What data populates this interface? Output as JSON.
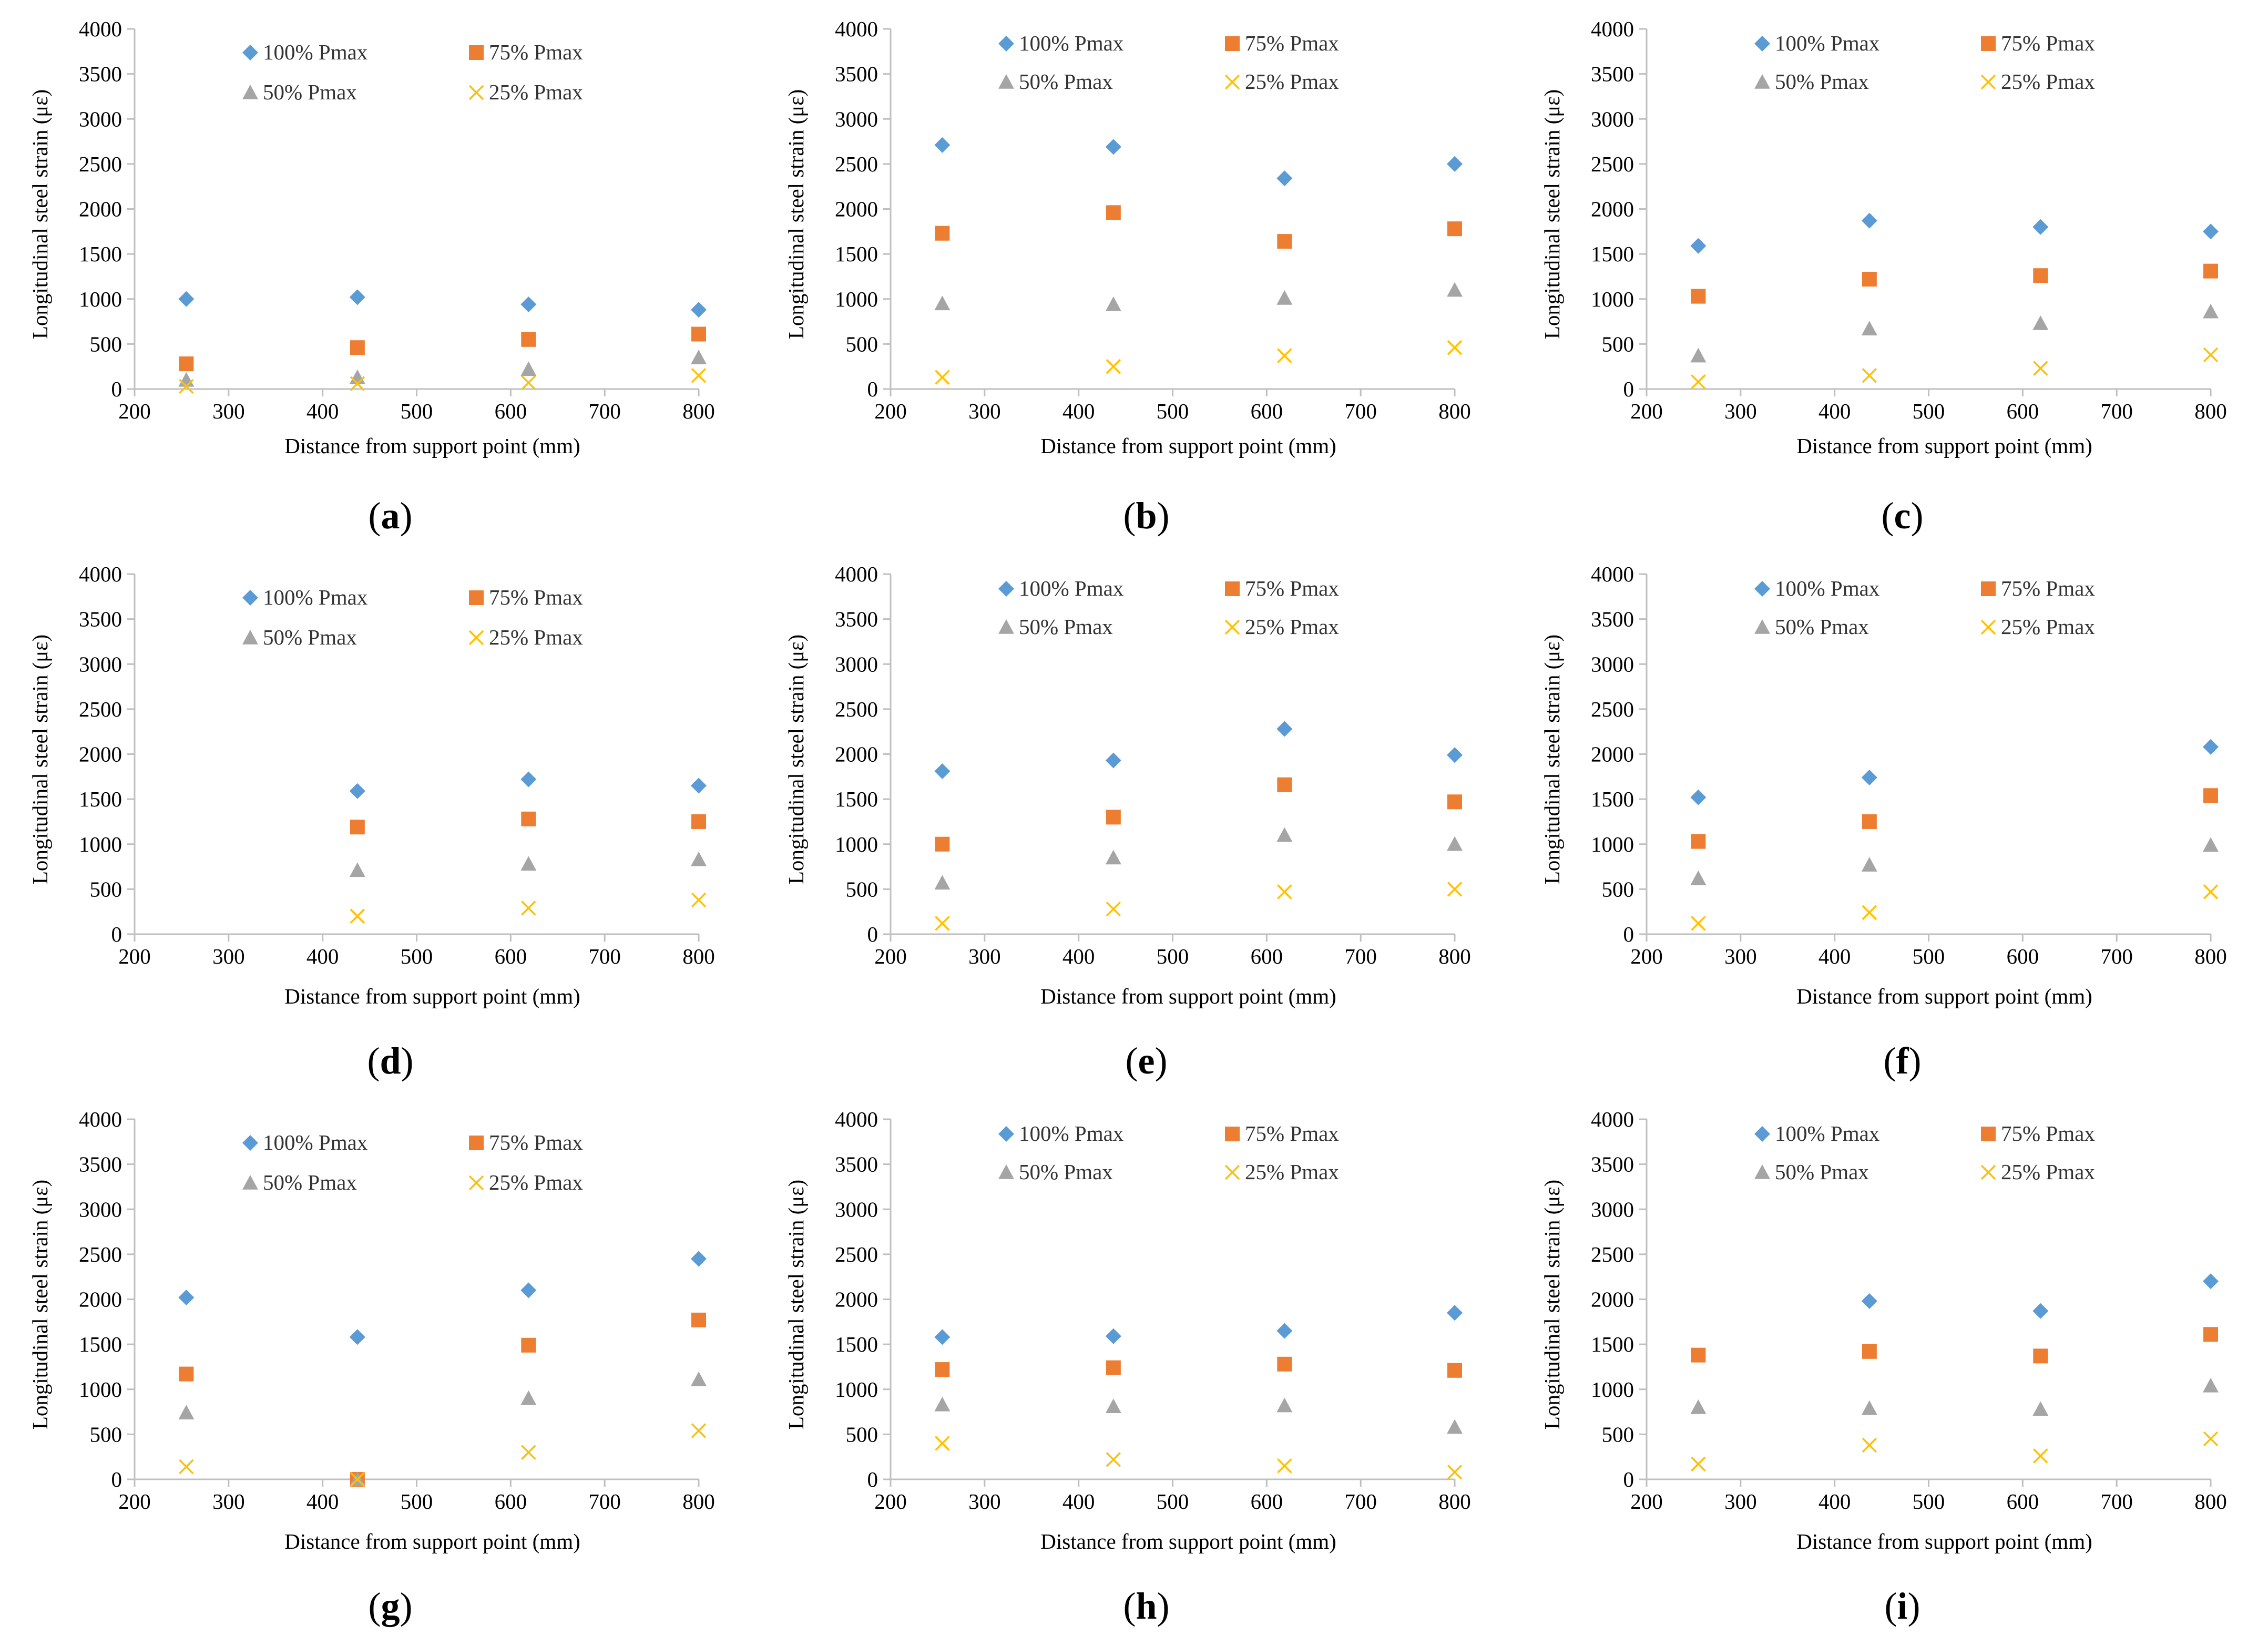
{
  "colors": {
    "p100": "#5b9bd5",
    "p75": "#ed7d31",
    "p50": "#a5a5a5",
    "p25": "#ffc000",
    "axis": "#bfbfbf"
  },
  "chart_data": [
    {
      "type": "scatter",
      "panel": "a",
      "caption_prefix": "(",
      "caption_letter": "a",
      "caption_suffix": ")",
      "xlabel": "Distance from support point (mm)",
      "ylabel": "Longitudinal steel strain (με)",
      "xlim": [
        200,
        800
      ],
      "ylim": [
        0,
        4000
      ],
      "xticks": [
        "200",
        "300",
        "400",
        "500",
        "600",
        "700",
        "800"
      ],
      "yticks": [
        "0",
        "500",
        "1000",
        "1500",
        "2000",
        "2500",
        "3000",
        "3500",
        "4000"
      ],
      "series": [
        {
          "name": "100% Pmax",
          "marker": "diamond",
          "x": [
            255,
            437,
            619,
            800
          ],
          "y": [
            1000,
            1020,
            940,
            880
          ]
        },
        {
          "name": "75% Pmax",
          "marker": "square",
          "x": [
            255,
            437,
            619,
            800
          ],
          "y": [
            280,
            460,
            550,
            610
          ]
        },
        {
          "name": "50% Pmax",
          "marker": "triangle",
          "x": [
            255,
            437,
            619,
            800
          ],
          "y": [
            100,
            130,
            220,
            350
          ]
        },
        {
          "name": "25% Pmax",
          "marker": "cross",
          "x": [
            255,
            437,
            619,
            800
          ],
          "y": [
            30,
            60,
            70,
            150
          ]
        }
      ]
    },
    {
      "type": "scatter",
      "panel": "b",
      "caption_prefix": "(",
      "caption_letter": "b",
      "caption_suffix": ")",
      "xlabel": "Distance from support point (mm)",
      "ylabel": "Longitudinal steel strain (με)",
      "xlim": [
        200,
        800
      ],
      "ylim": [
        0,
        4000
      ],
      "xticks": [
        "200",
        "300",
        "400",
        "500",
        "600",
        "700",
        "800"
      ],
      "yticks": [
        "0",
        "500",
        "1000",
        "1500",
        "2000",
        "2500",
        "3000",
        "3500",
        "4000"
      ],
      "series": [
        {
          "name": "100% Pmax",
          "marker": "diamond",
          "x": [
            255,
            437,
            619,
            800
          ],
          "y": [
            2710,
            2690,
            2340,
            2500
          ]
        },
        {
          "name": "75% Pmax",
          "marker": "square",
          "x": [
            255,
            437,
            619,
            800
          ],
          "y": [
            1730,
            1960,
            1640,
            1780
          ]
        },
        {
          "name": "50% Pmax",
          "marker": "triangle",
          "x": [
            255,
            437,
            619,
            800
          ],
          "y": [
            950,
            940,
            1010,
            1100
          ]
        },
        {
          "name": "25% Pmax",
          "marker": "cross",
          "x": [
            255,
            437,
            619,
            800
          ],
          "y": [
            130,
            250,
            370,
            460
          ]
        }
      ]
    },
    {
      "type": "scatter",
      "panel": "c",
      "caption_prefix": "(",
      "caption_letter": "c",
      "caption_suffix": ")",
      "xlabel": "Distance from support point (mm)",
      "ylabel": "Longitudinal steel strain (με)",
      "xlim": [
        200,
        800
      ],
      "ylim": [
        0,
        4000
      ],
      "xticks": [
        "200",
        "300",
        "400",
        "500",
        "600",
        "700",
        "800"
      ],
      "yticks": [
        "0",
        "500",
        "1000",
        "1500",
        "2000",
        "2500",
        "3000",
        "3500",
        "4000"
      ],
      "series": [
        {
          "name": "100% Pmax",
          "marker": "diamond",
          "x": [
            255,
            437,
            619,
            800
          ],
          "y": [
            1590,
            1870,
            1800,
            1750
          ]
        },
        {
          "name": "75% Pmax",
          "marker": "square",
          "x": [
            255,
            437,
            619,
            800
          ],
          "y": [
            1030,
            1220,
            1260,
            1310
          ]
        },
        {
          "name": "50% Pmax",
          "marker": "triangle",
          "x": [
            255,
            437,
            619,
            800
          ],
          "y": [
            370,
            670,
            730,
            860
          ]
        },
        {
          "name": "25% Pmax",
          "marker": "cross",
          "x": [
            255,
            437,
            619,
            800
          ],
          "y": [
            80,
            150,
            230,
            380
          ]
        }
      ]
    },
    {
      "type": "scatter",
      "panel": "d",
      "caption_prefix": "(",
      "caption_letter": "d",
      "caption_suffix": ")",
      "xlabel": "Distance from support point (mm)",
      "ylabel": "Longitudinal steel strain (με)",
      "xlim": [
        200,
        800
      ],
      "ylim": [
        0,
        4000
      ],
      "xticks": [
        "200",
        "300",
        "400",
        "500",
        "600",
        "700",
        "800"
      ],
      "yticks": [
        "0",
        "500",
        "1000",
        "1500",
        "2000",
        "2500",
        "3000",
        "3500",
        "4000"
      ],
      "series": [
        {
          "name": "100% Pmax",
          "marker": "diamond",
          "x": [
            437,
            619,
            800
          ],
          "y": [
            1590,
            1720,
            1650
          ]
        },
        {
          "name": "75% Pmax",
          "marker": "square",
          "x": [
            437,
            619,
            800
          ],
          "y": [
            1190,
            1280,
            1250
          ]
        },
        {
          "name": "50% Pmax",
          "marker": "triangle",
          "x": [
            437,
            619,
            800
          ],
          "y": [
            710,
            780,
            830
          ]
        },
        {
          "name": "25% Pmax",
          "marker": "cross",
          "x": [
            437,
            619,
            800
          ],
          "y": [
            200,
            290,
            380
          ]
        }
      ]
    },
    {
      "type": "scatter",
      "panel": "e",
      "caption_prefix": "(",
      "caption_letter": "e",
      "caption_suffix": ")",
      "xlabel": "Distance from support point (mm)",
      "ylabel": "Longitudinal steel strain (με)",
      "xlim": [
        200,
        800
      ],
      "ylim": [
        0,
        4000
      ],
      "xticks": [
        "200",
        "300",
        "400",
        "500",
        "600",
        "700",
        "800"
      ],
      "yticks": [
        "0",
        "500",
        "1000",
        "1500",
        "2000",
        "2500",
        "3000",
        "3500",
        "4000"
      ],
      "series": [
        {
          "name": "100% Pmax",
          "marker": "diamond",
          "x": [
            255,
            437,
            619,
            800
          ],
          "y": [
            1810,
            1930,
            2280,
            1990
          ]
        },
        {
          "name": "75% Pmax",
          "marker": "square",
          "x": [
            255,
            437,
            619,
            800
          ],
          "y": [
            1000,
            1300,
            1660,
            1470
          ]
        },
        {
          "name": "50% Pmax",
          "marker": "triangle",
          "x": [
            255,
            437,
            619,
            800
          ],
          "y": [
            570,
            850,
            1100,
            1000
          ]
        },
        {
          "name": "25% Pmax",
          "marker": "cross",
          "x": [
            255,
            437,
            619,
            800
          ],
          "y": [
            120,
            280,
            470,
            500
          ]
        }
      ]
    },
    {
      "type": "scatter",
      "panel": "f",
      "caption_prefix": "(",
      "caption_letter": "f",
      "caption_suffix": ")",
      "xlabel": "Distance from support point (mm)",
      "ylabel": "Longitudinal steel strain (με)",
      "xlim": [
        200,
        800
      ],
      "ylim": [
        0,
        4000
      ],
      "xticks": [
        "200",
        "300",
        "400",
        "500",
        "600",
        "700",
        "800"
      ],
      "yticks": [
        "0",
        "500",
        "1000",
        "1500",
        "2000",
        "2500",
        "3000",
        "3500",
        "4000"
      ],
      "series": [
        {
          "name": "100% Pmax",
          "marker": "diamond",
          "x": [
            255,
            437,
            800
          ],
          "y": [
            1520,
            1740,
            2080
          ]
        },
        {
          "name": "75% Pmax",
          "marker": "square",
          "x": [
            255,
            437,
            800
          ],
          "y": [
            1030,
            1250,
            1540
          ]
        },
        {
          "name": "50% Pmax",
          "marker": "triangle",
          "x": [
            255,
            437,
            800
          ],
          "y": [
            620,
            770,
            990
          ]
        },
        {
          "name": "25% Pmax",
          "marker": "cross",
          "x": [
            255,
            437,
            800
          ],
          "y": [
            120,
            240,
            470
          ]
        }
      ]
    },
    {
      "type": "scatter",
      "panel": "g",
      "caption_prefix": "(",
      "caption_letter": "g",
      "caption_suffix": ")",
      "xlabel": "Distance from support point (mm)",
      "ylabel": "Longitudinal steel strain (με)",
      "xlim": [
        200,
        800
      ],
      "ylim": [
        0,
        4000
      ],
      "xticks": [
        "200",
        "300",
        "400",
        "500",
        "600",
        "700",
        "800"
      ],
      "yticks": [
        "0",
        "500",
        "1000",
        "1500",
        "2000",
        "2500",
        "3000",
        "3500",
        "4000"
      ],
      "series": [
        {
          "name": "100% Pmax",
          "marker": "diamond",
          "x": [
            255,
            437,
            619,
            800
          ],
          "y": [
            2020,
            1580,
            2100,
            2450
          ]
        },
        {
          "name": "75% Pmax",
          "marker": "square",
          "x": [
            255,
            437,
            619,
            800
          ],
          "y": [
            1170,
            0,
            1490,
            1770
          ]
        },
        {
          "name": "50% Pmax",
          "marker": "triangle",
          "x": [
            255,
            437,
            619,
            800
          ],
          "y": [
            740,
            0,
            900,
            1110
          ]
        },
        {
          "name": "25% Pmax",
          "marker": "cross",
          "x": [
            255,
            437,
            619,
            800
          ],
          "y": [
            140,
            0,
            300,
            540
          ]
        }
      ]
    },
    {
      "type": "scatter",
      "panel": "h",
      "caption_prefix": "(",
      "caption_letter": "h",
      "caption_suffix": ")",
      "xlabel": "Distance from support point (mm)",
      "ylabel": "Longitudinal steel strain (με)",
      "xlim": [
        200,
        800
      ],
      "ylim": [
        0,
        4000
      ],
      "xticks": [
        "200",
        "300",
        "400",
        "500",
        "600",
        "700",
        "800"
      ],
      "yticks": [
        "0",
        "500",
        "1000",
        "1500",
        "2000",
        "2500",
        "3000",
        "3500",
        "4000"
      ],
      "series": [
        {
          "name": "100% Pmax",
          "marker": "diamond",
          "x": [
            255,
            437,
            619,
            800
          ],
          "y": [
            1580,
            1590,
            1650,
            1850
          ]
        },
        {
          "name": "75% Pmax",
          "marker": "square",
          "x": [
            255,
            437,
            619,
            800
          ],
          "y": [
            1220,
            1240,
            1280,
            1210
          ]
        },
        {
          "name": "50% Pmax",
          "marker": "triangle",
          "x": [
            255,
            437,
            619,
            800
          ],
          "y": [
            830,
            810,
            820,
            580
          ]
        },
        {
          "name": "25% Pmax",
          "marker": "cross",
          "x": [
            255,
            437,
            619,
            800
          ],
          "y": [
            400,
            220,
            150,
            80
          ]
        }
      ]
    },
    {
      "type": "scatter",
      "panel": "i",
      "caption_prefix": "(",
      "caption_letter": "i",
      "caption_suffix": ")",
      "xlabel": "Distance from support point (mm)",
      "ylabel": "Longitudinal steel strain (με)",
      "xlim": [
        200,
        800
      ],
      "ylim": [
        0,
        4000
      ],
      "xticks": [
        "200",
        "300",
        "400",
        "500",
        "600",
        "700",
        "800"
      ],
      "yticks": [
        "0",
        "500",
        "1000",
        "1500",
        "2000",
        "2500",
        "3000",
        "3500",
        "4000"
      ],
      "series": [
        {
          "name": "100% Pmax",
          "marker": "diamond",
          "x": [
            437,
            619,
            800
          ],
          "y": [
            1980,
            1870,
            2200
          ]
        },
        {
          "name": "75% Pmax",
          "marker": "square",
          "x": [
            255,
            437,
            619,
            800
          ],
          "y": [
            1380,
            1420,
            1370,
            1610
          ]
        },
        {
          "name": "50% Pmax",
          "marker": "triangle",
          "x": [
            255,
            437,
            619,
            800
          ],
          "y": [
            800,
            790,
            780,
            1040
          ]
        },
        {
          "name": "25% Pmax",
          "marker": "cross",
          "x": [
            255,
            437,
            619,
            800
          ],
          "y": [
            170,
            380,
            260,
            450
          ]
        }
      ]
    }
  ]
}
